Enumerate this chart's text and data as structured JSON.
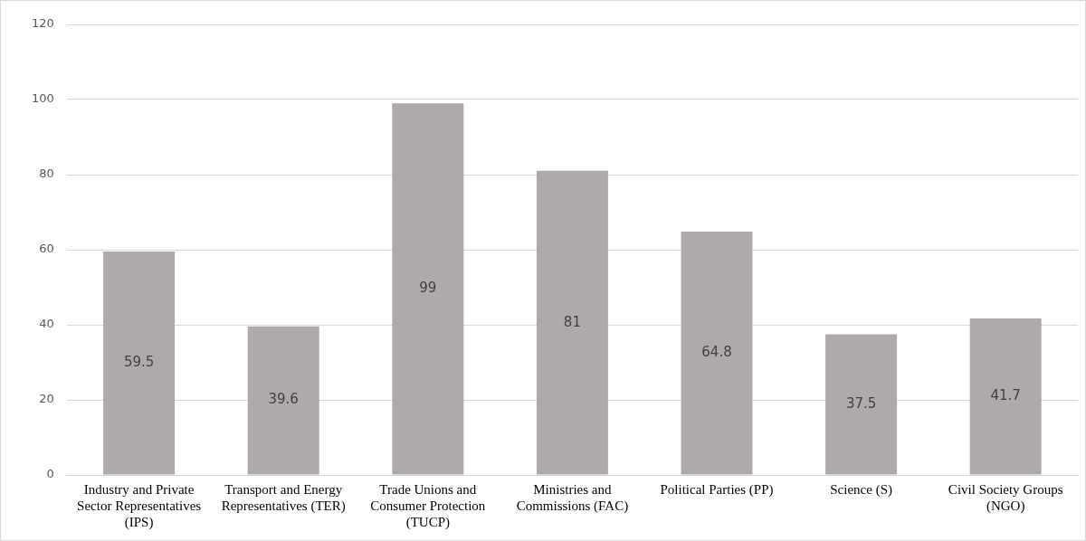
{
  "chart_data": {
    "type": "bar",
    "categories": [
      "Industry and Private Sector Representatives (IPS)",
      "Transport and Energy Representatives (TER)",
      "Trade Unions and Consumer Protection (TUCP)",
      "Ministries and Commissions (FAC)",
      "Political Parties (PP)",
      "Science (S)",
      "Civil Society Groups (NGO)"
    ],
    "values": [
      59.5,
      39.6,
      99,
      81,
      64.8,
      37.5,
      41.7
    ],
    "color": "#aeaaaa",
    "ylim": [
      0,
      120
    ],
    "yticks": [
      0,
      20,
      40,
      60,
      80,
      100,
      120
    ],
    "grid": "y",
    "legend": false,
    "data_labels": true
  }
}
